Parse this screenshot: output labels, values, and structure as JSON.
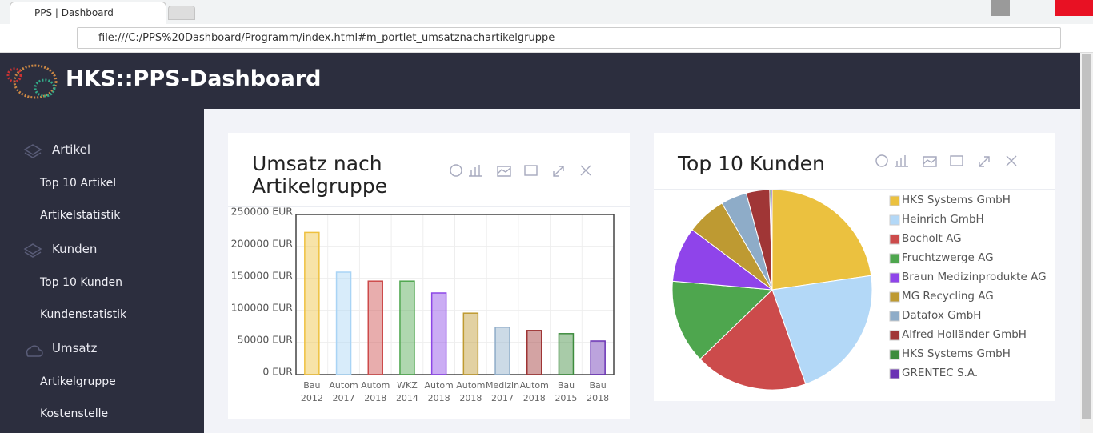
{
  "browser": {
    "tab_title": "PPS | Dashboard",
    "url": "file:///C:/PPS%20Dashboard/Programm/index.html#m_portlet_umsatznachartikelgruppe"
  },
  "header": {
    "title": "HKS::PPS-Dashboard"
  },
  "sidebar": {
    "sections": [
      {
        "label": "Artikel",
        "items": [
          "Top 10 Artikel",
          "Artikelstatistik"
        ]
      },
      {
        "label": "Kunden",
        "items": [
          "Top 10 Kunden",
          "Kundenstatistik"
        ]
      },
      {
        "label": "Umsatz",
        "items": [
          "Artikelgruppe",
          "Kostenstelle"
        ]
      }
    ]
  },
  "chart_data": [
    {
      "type": "bar",
      "title": "Umsatz nach Artikelgruppe",
      "categories": [
        [
          "Bau",
          "2012"
        ],
        [
          "Autom",
          "2017"
        ],
        [
          "Autom",
          "2018"
        ],
        [
          "WKZ",
          "2014"
        ],
        [
          "Autom",
          "2018"
        ],
        [
          "Autom",
          "2018"
        ],
        [
          "Medizin",
          "2017"
        ],
        [
          "Autom",
          "2018"
        ],
        [
          "Bau",
          "2015"
        ],
        [
          "Bau",
          "2018"
        ]
      ],
      "values": [
        222000,
        160000,
        146000,
        146000,
        127500,
        96000,
        74000,
        69000,
        64000,
        52500
      ],
      "colors": [
        "#eec03e",
        "#a9d4f5",
        "#cc4a4a",
        "#4ea64e",
        "#8c46e6",
        "#bf9a30",
        "#8eacc8",
        "#9e3434",
        "#3e8c3e",
        "#6a32b4"
      ],
      "ylim": [
        0,
        250000
      ],
      "yticks": [
        {
          "value": 0,
          "label": "0 EUR"
        },
        {
          "value": 50000,
          "label": "50000 EUR"
        },
        {
          "value": 100000,
          "label": "100000 EUR"
        },
        {
          "value": 150000,
          "label": "150000 EUR"
        },
        {
          "value": 200000,
          "label": "200000 EUR"
        },
        {
          "value": 250000,
          "label": "250000 EUR"
        }
      ],
      "grid": true
    },
    {
      "type": "pie",
      "title": "Top 10 Kunden",
      "categories": [
        "HKS Systems GmbH",
        "Heinrich GmbH",
        "Bocholt AG",
        "Fruchtzwerge AG",
        "Braun Medizinprodukte AG",
        "MG Recycling AG",
        "Datafox GmbH",
        "Alfred Holländer GmbH",
        "HKS Systems GmbH",
        "GRENTEC S.A."
      ],
      "values": [
        22.8,
        21.9,
        18.3,
        13.6,
        8.9,
        6.4,
        4.2,
        3.8,
        0.2,
        0.2
      ],
      "colors": [
        "#ebc13f",
        "#b3d8f7",
        "#cc4b4b",
        "#4ea64e",
        "#8f44ea",
        "#be9a32",
        "#8eacc8",
        "#a03636",
        "#3e8c3e",
        "#6a32b4"
      ],
      "legend": "right"
    }
  ]
}
